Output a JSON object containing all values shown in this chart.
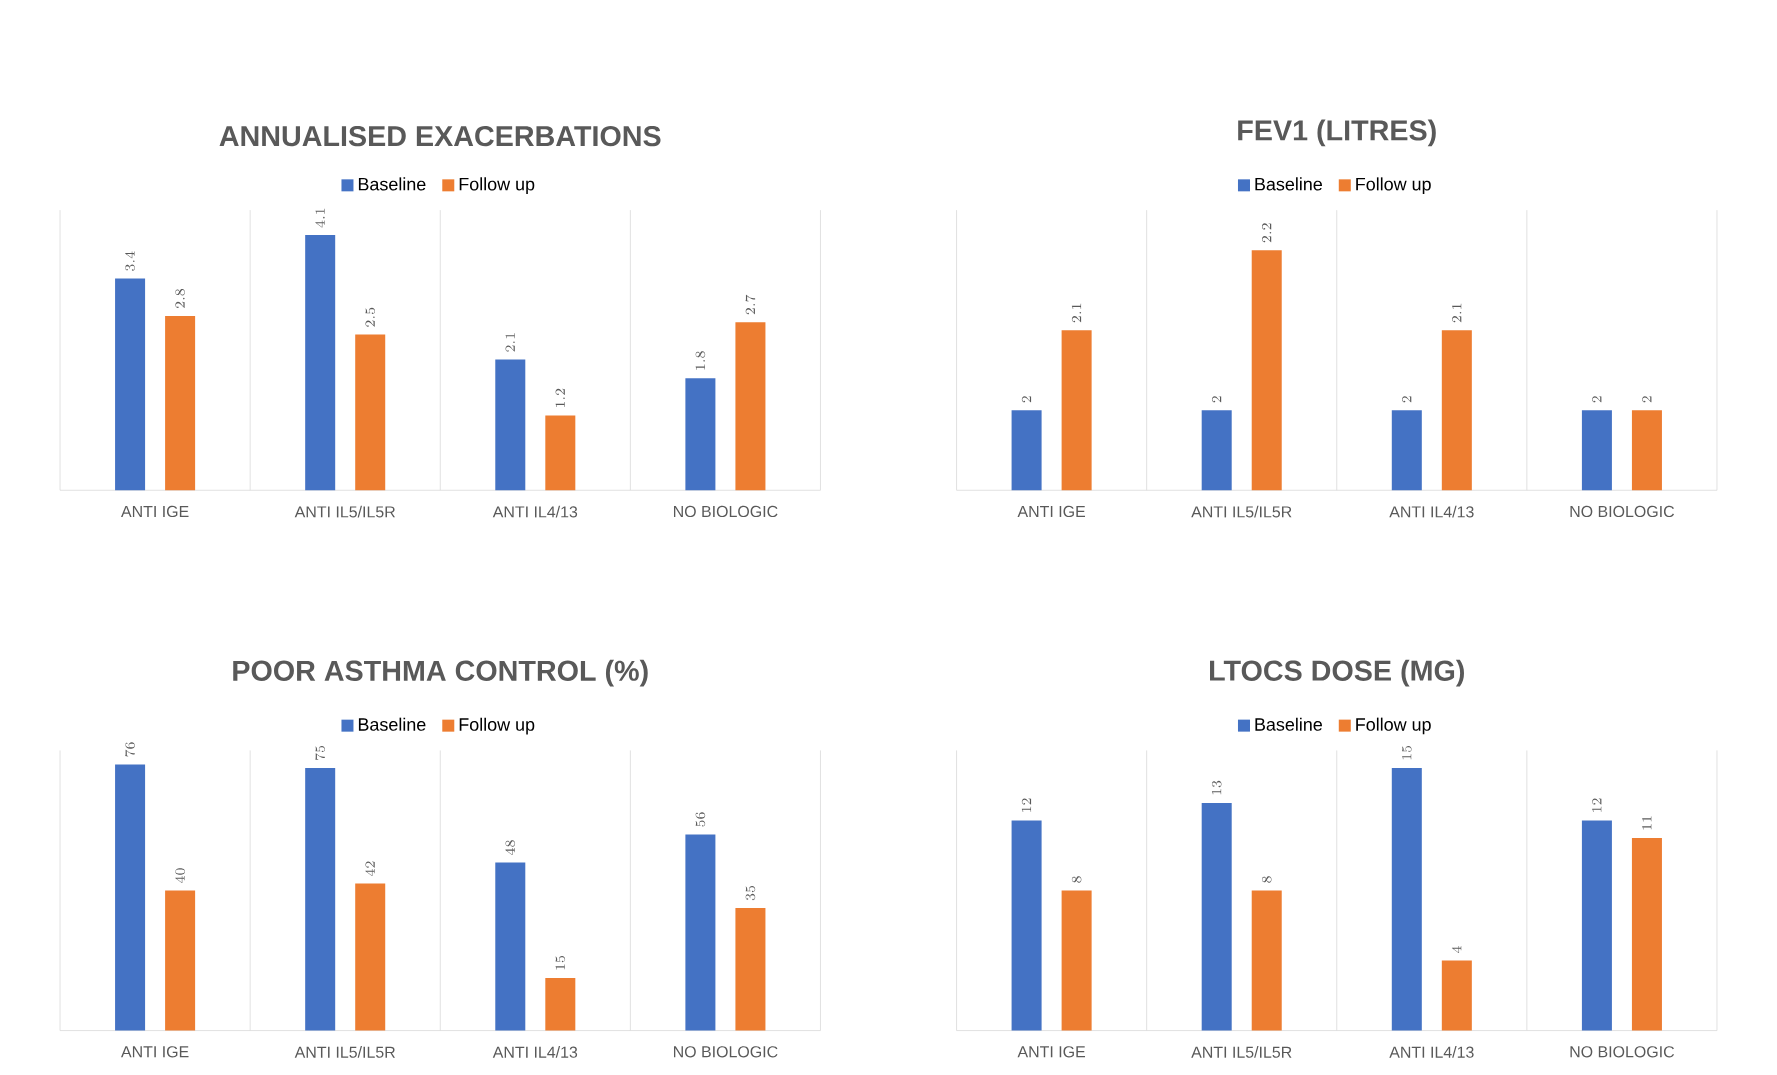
{
  "chart_data": [
    {
      "type": "bar",
      "title": "ANNUALISED EXACERBATIONS",
      "categories": [
        "ANTI IGE",
        "ANTI IL5/IL5R",
        "ANTI IL4/13",
        "NO BIOLOGIC"
      ],
      "ylim": [
        0,
        4.5
      ],
      "data_labels": true,
      "legend": "top",
      "grid": "x",
      "series": [
        {
          "name": "Baseline",
          "color": "#4472c4",
          "values": [
            3.4,
            4.1,
            2.1,
            1.8
          ]
        },
        {
          "name": "Follow up",
          "color": "#ed7d31",
          "values": [
            2.8,
            2.5,
            1.2,
            2.7
          ]
        }
      ]
    },
    {
      "type": "bar",
      "title": "FEV1 (LITRES)",
      "categories": [
        "ANTI IGE",
        "ANTI IL5/IL5R",
        "ANTI IL4/13",
        "NO BIOLOGIC"
      ],
      "ylim": [
        1.9,
        2.25
      ],
      "data_labels": true,
      "legend": "top",
      "grid": "x",
      "series": [
        {
          "name": "Baseline",
          "color": "#4472c4",
          "values": [
            2,
            2,
            2,
            2
          ]
        },
        {
          "name": "Follow up",
          "color": "#ed7d31",
          "values": [
            2.1,
            2.2,
            2.1,
            2
          ]
        }
      ]
    },
    {
      "type": "bar",
      "title": "POOR ASTHMA CONTROL (%)",
      "categories": [
        "ANTI IGE",
        "ANTI IL5/IL5R",
        "ANTI IL4/13",
        "NO BIOLOGIC"
      ],
      "ylim": [
        0,
        80
      ],
      "data_labels": true,
      "legend": "top",
      "grid": "x",
      "series": [
        {
          "name": "Baseline",
          "color": "#4472c4",
          "values": [
            76,
            75,
            48,
            56
          ]
        },
        {
          "name": "Follow up",
          "color": "#ed7d31",
          "values": [
            40,
            42,
            15,
            35
          ]
        }
      ]
    },
    {
      "type": "bar",
      "title": "LTOCS DOSE (MG)",
      "categories": [
        "ANTI IGE",
        "ANTI IL5/IL5R",
        "ANTI IL4/13",
        "NO BIOLOGIC"
      ],
      "ylim": [
        0,
        16
      ],
      "data_labels": true,
      "legend": "top",
      "grid": "x",
      "series": [
        {
          "name": "Baseline",
          "color": "#4472c4",
          "values": [
            12,
            13,
            15,
            12
          ]
        },
        {
          "name": "Follow up",
          "color": "#ed7d31",
          "values": [
            8,
            8,
            4,
            11
          ]
        }
      ]
    }
  ]
}
